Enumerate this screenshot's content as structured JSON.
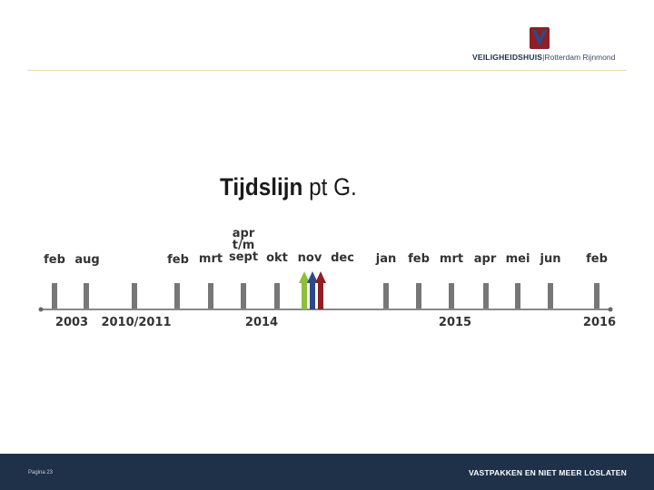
{
  "header": {
    "logo_bold": "VEILIGHEIDSHUIS",
    "logo_light": "|Rotterdam Rijnmond"
  },
  "title": {
    "main": "Tijdslijn",
    "rest": "pt G."
  },
  "timeline": {
    "months": [
      {
        "label": "feb"
      },
      {
        "label": "aug"
      },
      {
        "label": "feb"
      },
      {
        "label": "mrt"
      },
      {
        "label": "apr"
      },
      {
        "label": "t/m"
      },
      {
        "label": "sept"
      },
      {
        "label": "okt"
      },
      {
        "label": "nov"
      },
      {
        "label": "dec"
      },
      {
        "label": "jan"
      },
      {
        "label": "feb"
      },
      {
        "label": "mrt"
      },
      {
        "label": "apr"
      },
      {
        "label": "mei"
      },
      {
        "label": "jun"
      },
      {
        "label": "feb"
      }
    ],
    "years": [
      "2003",
      "2010/2011",
      "2014",
      "2015",
      "2016"
    ],
    "arrow_colors": [
      "#8dbe3c",
      "#2c4a8a",
      "#8e1f24"
    ]
  },
  "footer": {
    "page_number": "Pagina 23",
    "slogan": "VASTPAKKEN EN NIET MEER LOSLATEN"
  }
}
